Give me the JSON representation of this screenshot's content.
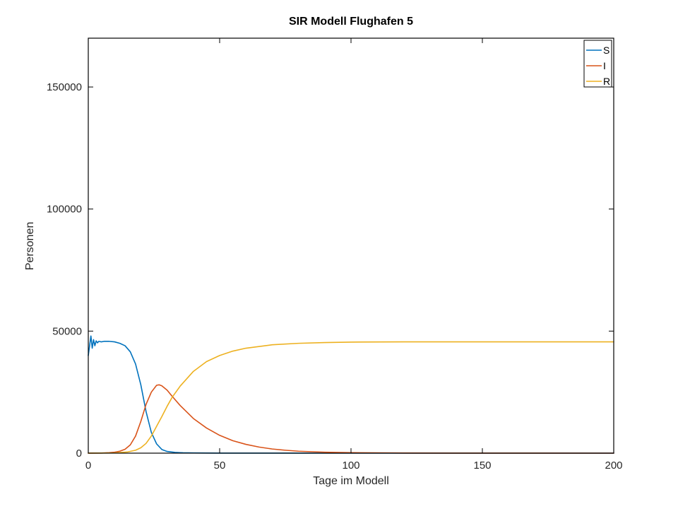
{
  "chart_data": {
    "type": "line",
    "title": "SIR Modell Flughafen 5",
    "xlabel": "Tage im Modell",
    "ylabel": "Personen",
    "xlim": [
      0,
      200
    ],
    "ylim": [
      0,
      170000
    ],
    "xticks": [
      0,
      50,
      100,
      150,
      200
    ],
    "yticks": [
      0,
      50000,
      100000,
      150000
    ],
    "grid": false,
    "legend": "top-right",
    "series": [
      {
        "name": "S",
        "color": "#0072BD",
        "x": [
          0,
          1,
          1.5,
          2,
          2.5,
          3,
          3.5,
          4,
          5,
          6,
          8,
          10,
          12,
          14,
          16,
          18,
          20,
          22,
          24,
          26,
          28,
          30,
          33,
          36,
          40,
          45,
          50,
          60,
          80,
          100,
          150,
          200
        ],
        "y": [
          40000,
          48000,
          43000,
          46500,
          44000,
          46000,
          45200,
          45800,
          45600,
          45800,
          45800,
          45600,
          45000,
          44000,
          41500,
          36500,
          28000,
          17000,
          8500,
          3800,
          1500,
          700,
          300,
          150,
          80,
          40,
          20,
          10,
          5,
          0,
          0,
          0
        ]
      },
      {
        "name": "I",
        "color": "#D95319",
        "x": [
          0,
          5,
          8,
          10,
          12,
          14,
          16,
          18,
          20,
          22,
          24,
          26,
          27,
          28,
          30,
          32,
          35,
          40,
          45,
          50,
          55,
          60,
          65,
          70,
          75,
          80,
          90,
          100,
          120,
          150,
          200
        ],
        "y": [
          0,
          50,
          200,
          400,
          800,
          1600,
          3400,
          7000,
          13000,
          20000,
          25000,
          27800,
          28000,
          27600,
          25800,
          23200,
          19500,
          14200,
          10300,
          7300,
          5100,
          3600,
          2500,
          1700,
          1200,
          800,
          400,
          200,
          50,
          10,
          0
        ]
      },
      {
        "name": "R",
        "color": "#EDB120",
        "x": [
          0,
          10,
          15,
          18,
          20,
          22,
          24,
          26,
          28,
          30,
          32,
          35,
          40,
          45,
          50,
          55,
          60,
          70,
          80,
          90,
          100,
          120,
          150,
          200
        ],
        "y": [
          0,
          100,
          500,
          1200,
          2200,
          4000,
          7000,
          11000,
          15000,
          19200,
          23000,
          27500,
          33500,
          37500,
          40000,
          41800,
          43000,
          44400,
          45000,
          45300,
          45500,
          45600,
          45600,
          45600
        ]
      }
    ]
  }
}
